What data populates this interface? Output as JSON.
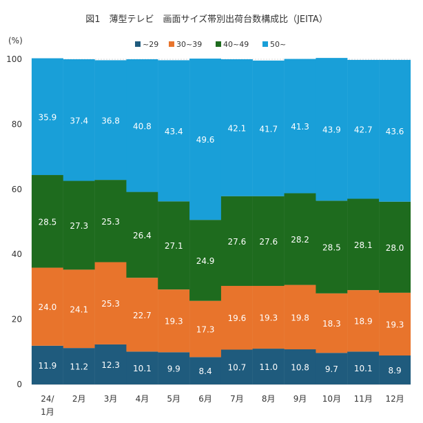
{
  "chart_data": {
    "type": "bar",
    "stacked": true,
    "title": "図1　薄型テレビ　画面サイズ帯別出荷台数構成比（JEITA）",
    "ylabel": "(%)",
    "ylim": [
      0,
      100
    ],
    "yticks": [
      0,
      20,
      40,
      60,
      80,
      100
    ],
    "grid": true,
    "legend_position": "top",
    "categories": [
      [
        "24/",
        "1月"
      ],
      [
        "2月"
      ],
      [
        "3月"
      ],
      [
        "4月"
      ],
      [
        "5月"
      ],
      [
        "6月"
      ],
      [
        "7月"
      ],
      [
        "8月"
      ],
      [
        "9月"
      ],
      [
        "10月"
      ],
      [
        "11月"
      ],
      [
        "12月"
      ]
    ],
    "series": [
      {
        "name": "~29",
        "color": "#1f5b7d",
        "values": [
          11.9,
          11.2,
          12.3,
          10.1,
          9.9,
          8.4,
          10.7,
          11.0,
          10.8,
          9.7,
          10.1,
          8.9
        ]
      },
      {
        "name": "30~39",
        "color": "#e8742c",
        "values": [
          24.0,
          24.1,
          25.3,
          22.7,
          19.3,
          17.3,
          19.6,
          19.3,
          19.8,
          18.3,
          18.9,
          19.3
        ]
      },
      {
        "name": "40~49",
        "color": "#1e6b1e",
        "values": [
          28.5,
          27.3,
          25.3,
          26.4,
          27.1,
          24.9,
          27.6,
          27.6,
          28.2,
          28.5,
          28.1,
          28.0
        ]
      },
      {
        "name": "50~",
        "color": "#199fd8",
        "values": [
          35.9,
          37.4,
          36.8,
          40.8,
          43.4,
          49.6,
          42.1,
          41.7,
          41.3,
          43.9,
          42.7,
          43.6
        ]
      }
    ]
  }
}
